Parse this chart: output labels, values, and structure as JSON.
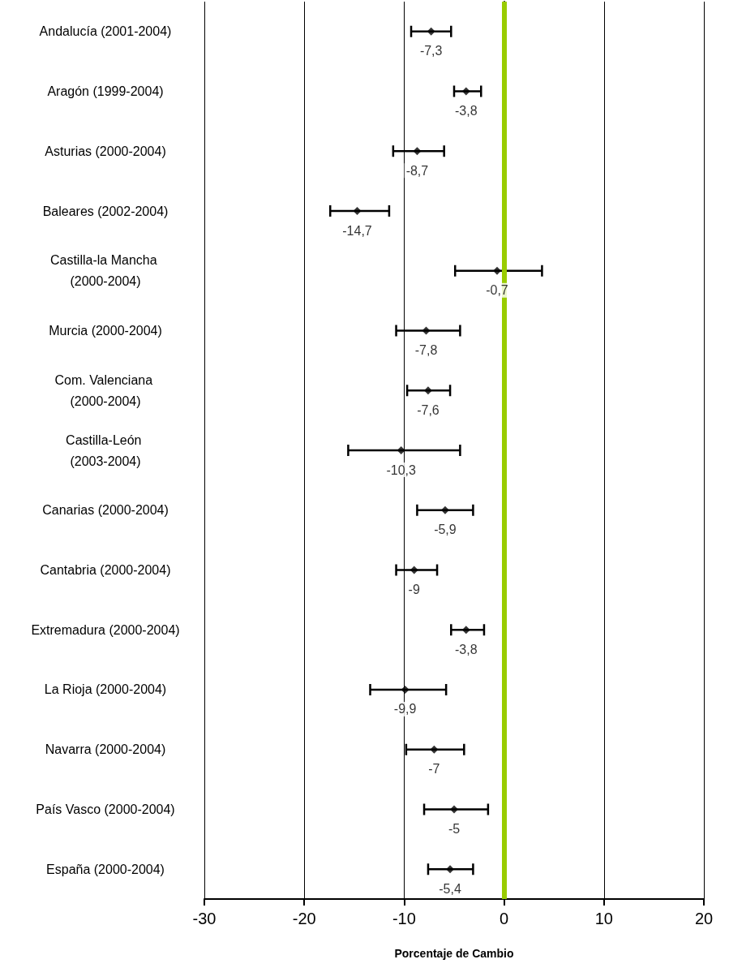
{
  "chart_data": {
    "type": "scatter",
    "orientation": "horizontal",
    "xlabel": "Porcentaje de Cambio",
    "categories": [
      "Andalucía (2001-2004)",
      "Aragón (1999-2004)",
      "Asturias (2000-2004)",
      "Baleares (2002-2004)",
      "Castilla-la Mancha (2000-2004)",
      "Murcia (2000-2004)",
      "Com. Valenciana (2000-2004)",
      "Castilla-León (2003-2004)",
      "Canarias (2000-2004)",
      "Cantabria (2000-2004)",
      "Extremadura (2000-2004)",
      "La Rioja (2000-2004)",
      "Navarra (2000-2004)",
      "País Vasco (2000-2004)",
      "España (2000-2004)"
    ],
    "series": [
      {
        "color": "#000000",
        "values": [
          -7.3,
          -3.8,
          -8.7,
          -14.7,
          -0.7,
          -7.8,
          -7.6,
          -10.3,
          -5.9,
          -9,
          -3.8,
          -9.9,
          -7,
          -5,
          -5.4
        ],
        "errors": [
          [
            -9.3,
            -5.3
          ],
          [
            -5.0,
            -2.3
          ],
          [
            -11.1,
            -6.0
          ],
          [
            -17.4,
            -11.5
          ],
          [
            -4.9,
            3.8
          ],
          [
            -10.8,
            -4.4
          ],
          [
            -9.7,
            -5.4
          ],
          [
            -15.6,
            -4.4
          ],
          [
            -8.7,
            -3.1
          ],
          [
            -10.8,
            -6.7
          ],
          [
            -5.3,
            -2.0
          ],
          [
            -13.4,
            -5.8
          ],
          [
            -9.8,
            -4.0
          ],
          [
            -8.0,
            -1.6
          ],
          [
            -7.6,
            -3.1
          ]
        ],
        "value_labels": [
          "-7,3",
          "-3,8",
          "-8,7",
          "-14,7",
          "-0,7",
          "-7,8",
          "-7,6",
          "-10,3",
          "-5,9",
          "-9",
          "-3,8",
          "-9,9",
          "-7",
          "-5",
          "-5,4"
        ]
      }
    ],
    "xlim": [
      -30,
      20
    ],
    "xticks": [
      -30,
      -20,
      -10,
      0,
      10,
      20
    ],
    "grid": "x",
    "marker": "diamond",
    "ref_lines": [
      {
        "axis": "x",
        "value": 0,
        "color": "#99cc00"
      }
    ]
  }
}
